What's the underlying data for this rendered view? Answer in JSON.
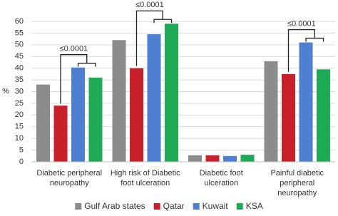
{
  "chart_data": {
    "type": "bar",
    "ylabel": "%",
    "categories": [
      "Diabetic peripheral neuropathy",
      "High risk of Diabetic foot ulceration",
      "Diabetic foot ulceration",
      "Painful diabetic peripheral neuropathy"
    ],
    "series": [
      {
        "name": "Gulf Arab states",
        "color": "#8c8c8c",
        "values": [
          33,
          52,
          2.8,
          43
        ]
      },
      {
        "name": "Qatar",
        "color": "#c8202a",
        "values": [
          24,
          40,
          2.8,
          37.5
        ]
      },
      {
        "name": "Kuwait",
        "color": "#4f7fd0",
        "values": [
          40.3,
          54.5,
          2.5,
          51
        ]
      },
      {
        "name": "KSA",
        "color": "#1faa55",
        "values": [
          36,
          59,
          3,
          39.5
        ]
      }
    ],
    "annotations": [
      "≤0.0001",
      "≤0.0001",
      null,
      "≤0.0001"
    ],
    "ylim": [
      0,
      60
    ],
    "yticks": [
      0,
      5,
      10,
      15,
      20,
      25,
      30,
      35,
      40,
      45,
      50,
      55,
      60
    ],
    "grid": true,
    "legend": "bottom"
  }
}
